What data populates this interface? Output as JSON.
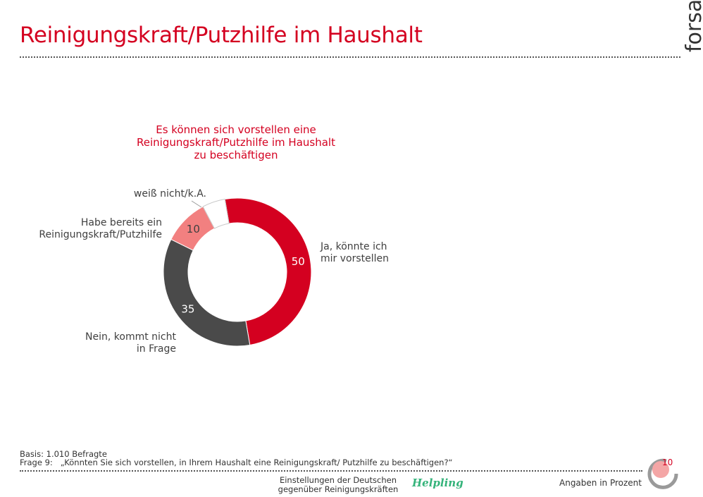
{
  "header": {
    "title": "Reinigungskraft/Putzhilfe im Haushalt",
    "logo_text": "forsa"
  },
  "chart_data": {
    "type": "pie",
    "title": "Es können sich vorstellen eine Reinigungskraft/Putzhilfe im Haushalt zu beschäftigen",
    "title_lines": [
      "Es können sich vorstellen eine",
      "Reinigungskraft/Putzhilfe im Haushalt",
      "zu beschäftigen"
    ],
    "unit": "Angaben in Prozent",
    "slices": [
      {
        "label_lines": [
          "Ja, könnte ich",
          "mir vorstellen"
        ],
        "value": 50,
        "value_label": "50",
        "color": "#d40020"
      },
      {
        "label_lines": [
          "Nein, kommt nicht",
          "in Frage"
        ],
        "value": 35,
        "value_label": "35",
        "color": "#4a4a4a"
      },
      {
        "label_lines": [
          "Habe bereits ein",
          "Reinigungskraft/Putzhilfe"
        ],
        "value": 10,
        "value_label": "10",
        "color": "#f28080"
      },
      {
        "label_lines": [
          "weiß nicht/k.A."
        ],
        "value": 5,
        "value_label": "",
        "color": "#ffffff"
      }
    ]
  },
  "footer": {
    "basis": "Basis: 1.010 Befragte",
    "frage_label": "Frage 9:",
    "frage_text": "„Könnten Sie sich vorstellen, in Ihrem Haushalt eine Reinigungskraft/ Putzhilfe zu beschäftigen?“",
    "center_line1": "Einstellungen der Deutschen",
    "center_line2": "gegenüber Reinigungskräften",
    "brand": "Helpling",
    "angaben": "Angaben in Prozent",
    "page_number": "10"
  },
  "colors": {
    "accent": "#d40020",
    "dark": "#4a4a4a",
    "light_red": "#f28080",
    "brand_green": "#34b37a"
  }
}
